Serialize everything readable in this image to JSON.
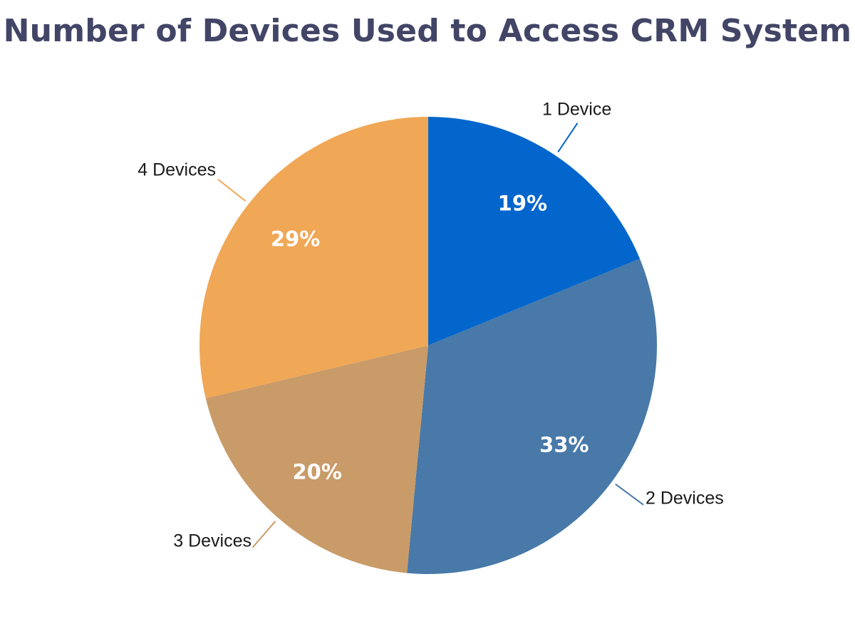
{
  "chart_data": {
    "type": "pie",
    "title": "Number of Devices Used to Access CRM System",
    "slices": [
      {
        "label": "1 Device",
        "value": 19,
        "display": "19%",
        "color": "#0366CC"
      },
      {
        "label": "2 Devices",
        "value": 33,
        "display": "33%",
        "color": "#4879A8"
      },
      {
        "label": "3 Devices",
        "value": 20,
        "display": "20%",
        "color": "#C99B68"
      },
      {
        "label": "4 Devices",
        "value": 29,
        "display": "29%",
        "color": "#F0A756"
      }
    ],
    "start": "12 o'clock",
    "direction": "clockwise",
    "legend": "none"
  }
}
